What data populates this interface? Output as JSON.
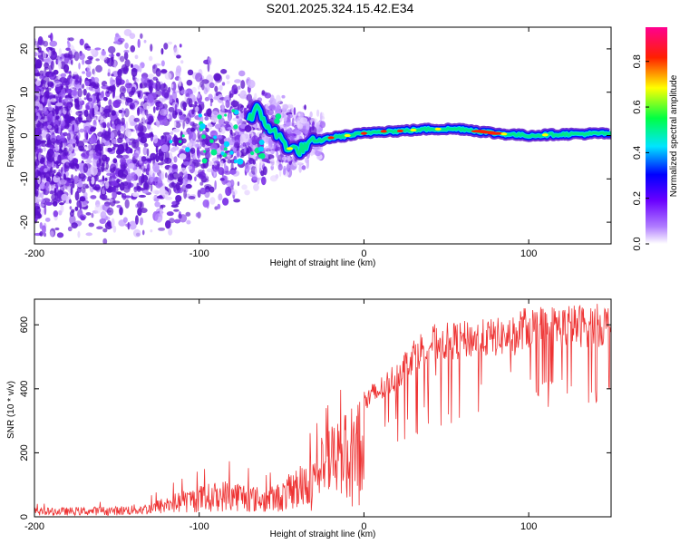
{
  "title": "S201.2025.324.15.42.E34",
  "colors": {
    "signal_band": "#00e68a",
    "snr_line": "#ee3333",
    "scatter_purple": "#7a2ee6",
    "colorbar": [
      "#ffffff",
      "#7700ff",
      "#0000ff",
      "#00ffff",
      "#00ff00",
      "#ffff00",
      "#ff0000",
      "#ff00aa"
    ]
  },
  "chart_data": [
    {
      "type": "heatmap",
      "title": "",
      "xlabel": "Height of straight line (km)",
      "ylabel": "Frequency (Hz)",
      "xlim": [
        -200,
        150
      ],
      "ylim": [
        -25,
        25
      ],
      "xticks": [
        -200,
        -100,
        0,
        100
      ],
      "yticks": [
        -20,
        -10,
        0,
        10,
        20
      ],
      "signal_track": {
        "x": [
          -70,
          -65,
          -60,
          -55,
          -50,
          -45,
          -40,
          -35,
          -30,
          -20,
          -10,
          0,
          10,
          20,
          40,
          60,
          80,
          100,
          120,
          150
        ],
        "freq": [
          4,
          6,
          3,
          1,
          -1,
          -3,
          -3.5,
          -2.5,
          -1.5,
          -0.5,
          0,
          0.5,
          1,
          1,
          1.5,
          1.5,
          0.5,
          0,
          0.3,
          0.5
        ]
      },
      "colorbar": {
        "label": "Normalized spectral amplitude",
        "range": [
          0.0,
          0.95
        ],
        "ticks": [
          0.0,
          0.2,
          0.4,
          0.6,
          0.8
        ],
        "tick_labels": [
          "0.0",
          "0.2",
          "0.4",
          "0.6",
          "0.8"
        ]
      }
    },
    {
      "type": "line",
      "title": "",
      "xlabel": "Height of straight line (km)",
      "ylabel": "SNR (10 * v/v)",
      "xlim": [
        -200,
        150
      ],
      "ylim": [
        0,
        680
      ],
      "xticks": [
        -200,
        -100,
        0,
        100
      ],
      "yticks": [
        0,
        200,
        400,
        600
      ],
      "envelope": {
        "x": [
          -200,
          -150,
          -130,
          -120,
          -100,
          -80,
          -60,
          -50,
          -40,
          -30,
          -20,
          -10,
          0,
          10,
          20,
          30,
          40,
          60,
          80,
          100,
          120,
          150
        ],
        "y": [
          25,
          30,
          40,
          60,
          90,
          110,
          80,
          100,
          150,
          200,
          260,
          300,
          390,
          430,
          480,
          550,
          590,
          600,
          610,
          615,
          620,
          625
        ]
      }
    }
  ]
}
